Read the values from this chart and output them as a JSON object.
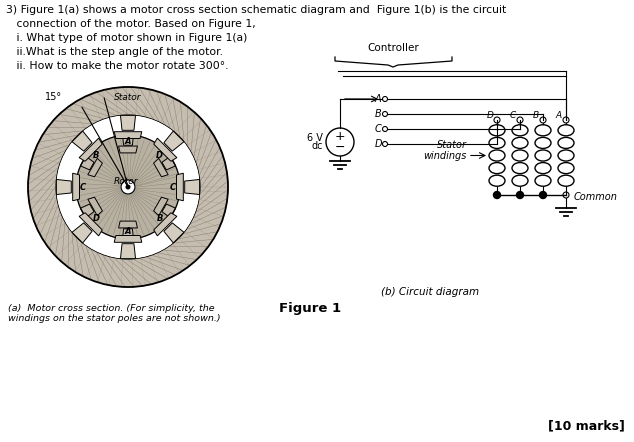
{
  "text_color": "#000000",
  "bg_color": "#ffffff",
  "title_text": "Figure 1",
  "caption_a": "(a)  Motor cross section. (For simplicity, the\nwindings on the stator poles are not shown.)",
  "caption_b": "(b) Circuit diagram",
  "marks_text": "[10 marks]",
  "controller_label": "Controller",
  "stator_windings_label": "Stator\nwindings",
  "common_label": "Common",
  "voltage_label": "6 V\ndc"
}
